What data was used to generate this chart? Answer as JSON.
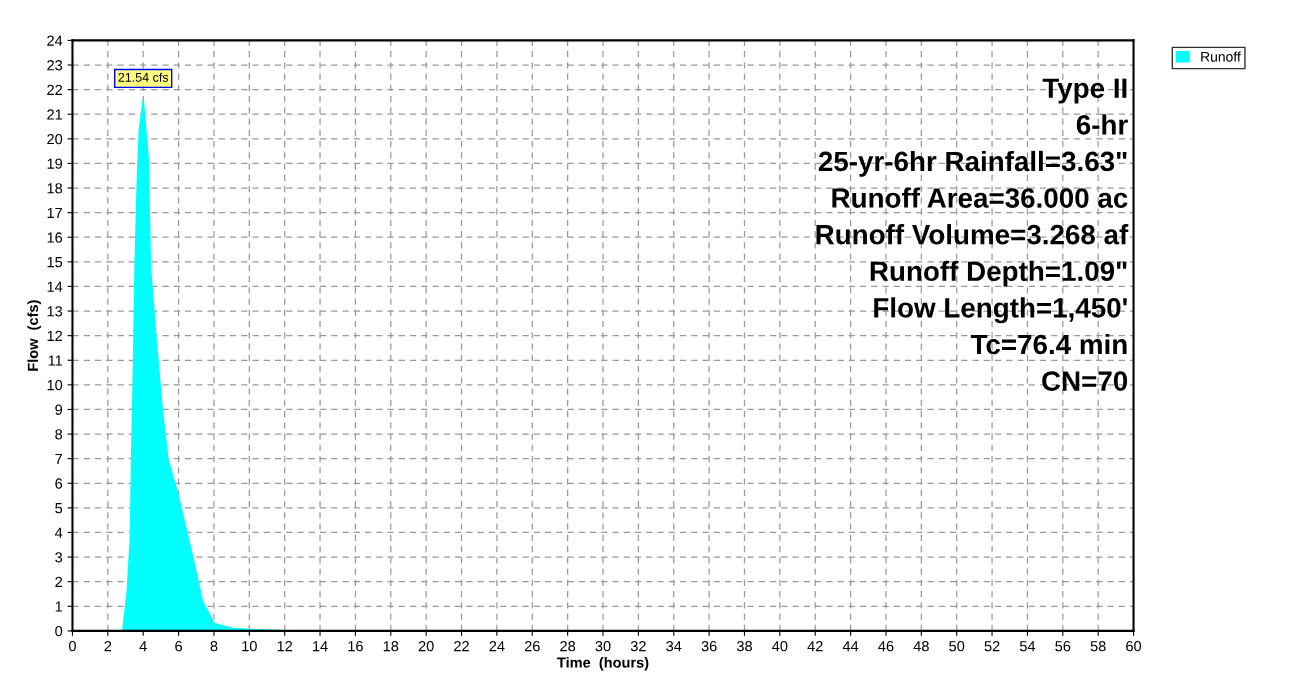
{
  "chart_data": {
    "type": "area",
    "xlabel": "Time  (hours)",
    "ylabel": "Flow  (cfs)",
    "x": [
      0,
      2.85,
      3.1,
      3.28,
      3.35,
      3.45,
      3.55,
      3.68,
      3.79,
      4.0,
      4.28,
      4.4,
      4.72,
      5.06,
      5.39,
      5.94,
      6.7,
      7.35,
      8.0,
      9.0,
      10.0,
      12.0,
      60
    ],
    "series": [
      {
        "name": "Runoff",
        "color": "#00ffff",
        "values": [
          0,
          0,
          1.6,
          3.8,
          7.0,
          10.6,
          15.0,
          18.5,
          20.4,
          21.54,
          19.2,
          14.8,
          11.9,
          9.1,
          7.0,
          5.6,
          3.3,
          1.2,
          0.3,
          0.1,
          0.05,
          0,
          0
        ]
      }
    ],
    "xlim": [
      0,
      60
    ],
    "ylim": [
      0,
      24
    ],
    "xticks": [
      0,
      2,
      4,
      6,
      8,
      10,
      12,
      14,
      16,
      18,
      20,
      22,
      24,
      26,
      28,
      30,
      32,
      34,
      36,
      38,
      40,
      42,
      44,
      46,
      48,
      50,
      52,
      54,
      56,
      58,
      60
    ],
    "yticks": [
      0,
      1,
      2,
      3,
      4,
      5,
      6,
      7,
      8,
      9,
      10,
      11,
      12,
      13,
      14,
      15,
      16,
      17,
      18,
      19,
      20,
      21,
      22,
      23,
      24
    ],
    "grid": true,
    "legend": "top right",
    "annotations": [
      {
        "text": "21.54 cfs",
        "x": 4,
        "y": 21.54
      },
      "Type II",
      "6-hr",
      "25-yr-6hr Rainfall=3.63\"",
      "Runoff Area=36.000 ac",
      "Runoff Volume=3.268 af",
      "Runoff Depth=1.09\"",
      "Flow Length=1,450'",
      "Tc=76.4 min",
      "CN=70"
    ]
  }
}
